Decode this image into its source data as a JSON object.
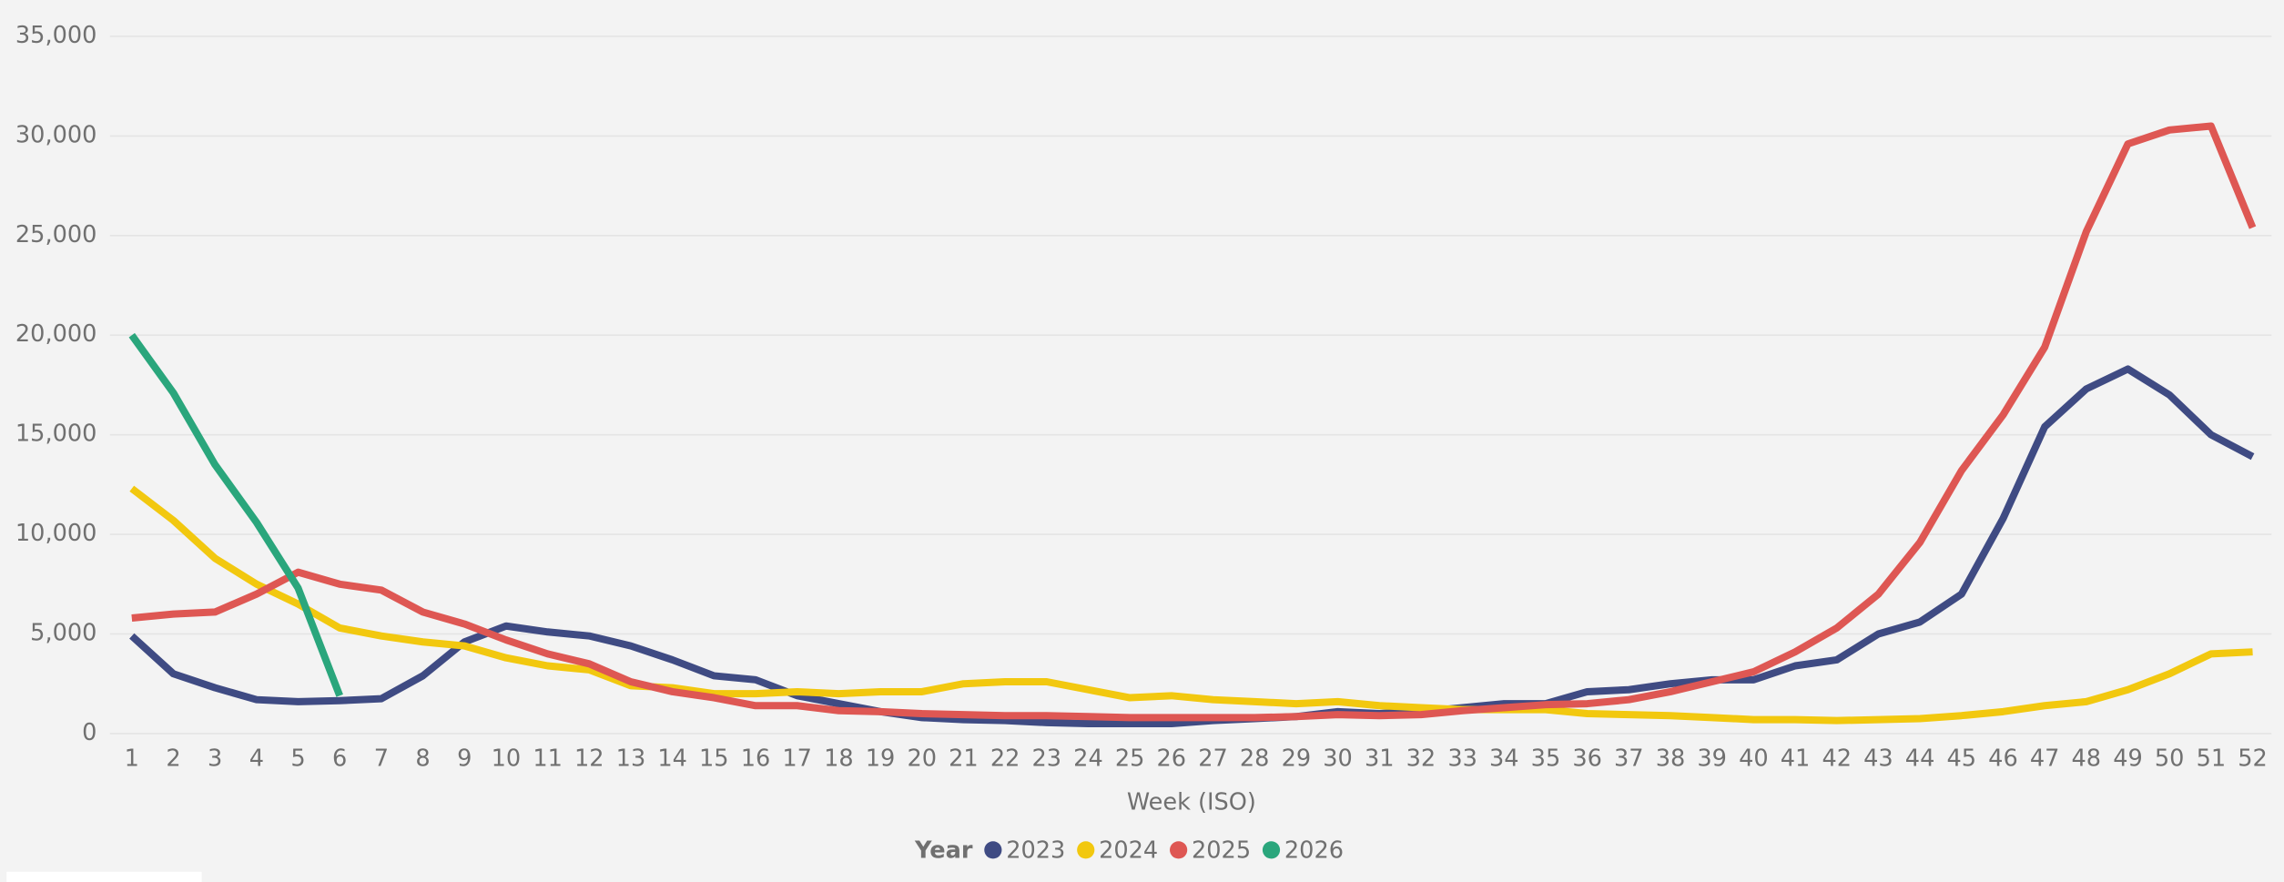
{
  "chart_data": {
    "type": "line",
    "x_label": "Week (ISO)",
    "legend_title": "Year",
    "x": [
      1,
      2,
      3,
      4,
      5,
      6,
      7,
      8,
      9,
      10,
      11,
      12,
      13,
      14,
      15,
      16,
      17,
      18,
      19,
      20,
      21,
      22,
      23,
      24,
      25,
      26,
      27,
      28,
      29,
      30,
      31,
      32,
      33,
      34,
      35,
      36,
      37,
      38,
      39,
      40,
      41,
      42,
      43,
      44,
      45,
      46,
      47,
      48,
      49,
      50,
      51,
      52
    ],
    "xlim": [
      1,
      52
    ],
    "xticks": [
      1,
      2,
      3,
      4,
      5,
      6,
      7,
      8,
      9,
      10,
      11,
      12,
      13,
      14,
      15,
      16,
      17,
      18,
      19,
      20,
      21,
      22,
      23,
      24,
      25,
      26,
      27,
      28,
      29,
      30,
      31,
      32,
      33,
      34,
      35,
      36,
      37,
      38,
      39,
      40,
      41,
      42,
      43,
      44,
      45,
      46,
      47,
      48,
      49,
      50,
      51,
      52
    ],
    "ylim": [
      0,
      35000
    ],
    "yticks": [
      0,
      {
        "value": 5000,
        "label": "5,000"
      },
      {
        "value": 10000,
        "label": "10,000"
      },
      {
        "value": 15000,
        "label": "15,000"
      },
      {
        "value": 20000,
        "label": "20,000"
      },
      {
        "value": 25000,
        "label": "25,000"
      },
      {
        "value": 30000,
        "label": "30,000"
      },
      {
        "value": 35000,
        "label": "35,000"
      }
    ],
    "grid": true,
    "series": [
      {
        "name": "2023",
        "color": "#3f4b83",
        "values": [
          4900,
          3000,
          2300,
          1700,
          1600,
          1650,
          1750,
          2900,
          4600,
          5400,
          5100,
          4900,
          4400,
          3700,
          2900,
          2700,
          1900,
          1500,
          1100,
          800,
          700,
          650,
          550,
          500,
          500,
          500,
          650,
          750,
          850,
          1100,
          1000,
          1100,
          1300,
          1500,
          1500,
          2100,
          2200,
          2500,
          2700,
          2700,
          3400,
          3700,
          5000,
          5600,
          7000,
          10800,
          15400,
          17300,
          18300,
          17000,
          15000,
          13900
        ]
      },
      {
        "name": "2024",
        "color": "#f2c80f",
        "values": [
          12300,
          10700,
          8800,
          7500,
          6500,
          5300,
          4900,
          4600,
          4400,
          3800,
          3400,
          3200,
          2400,
          2300,
          2000,
          2000,
          2100,
          2000,
          2100,
          2100,
          2500,
          2600,
          2600,
          2200,
          1800,
          1900,
          1700,
          1600,
          1500,
          1600,
          1400,
          1300,
          1200,
          1200,
          1200,
          1000,
          950,
          900,
          800,
          700,
          700,
          650,
          700,
          750,
          900,
          1100,
          1400,
          1600,
          2200,
          3000,
          4000,
          4100
        ]
      },
      {
        "name": "2025",
        "color": "#de5753",
        "values": [
          5800,
          6000,
          6100,
          7000,
          8100,
          7500,
          7200,
          6100,
          5500,
          4700,
          4000,
          3500,
          2600,
          2100,
          1800,
          1400,
          1400,
          1150,
          1100,
          1000,
          950,
          900,
          900,
          850,
          800,
          800,
          800,
          800,
          850,
          950,
          900,
          950,
          1150,
          1300,
          1450,
          1500,
          1700,
          2100,
          2600,
          3100,
          4100,
          5300,
          7000,
          9600,
          13200,
          16000,
          19400,
          25200,
          29600,
          30300,
          30500,
          25400
        ]
      },
      {
        "name": "2026",
        "color": "#2aa67c",
        "values": [
          20000,
          17100,
          13500,
          10600,
          7300,
          1900,
          null,
          null,
          null,
          null,
          null,
          null,
          null,
          null,
          null,
          null,
          null,
          null,
          null,
          null,
          null,
          null,
          null,
          null,
          null,
          null,
          null,
          null,
          null,
          null,
          null,
          null,
          null,
          null,
          null,
          null,
          null,
          null,
          null,
          null,
          null,
          null,
          null,
          null,
          null,
          null,
          null,
          null,
          null,
          null,
          null,
          null
        ]
      }
    ]
  }
}
